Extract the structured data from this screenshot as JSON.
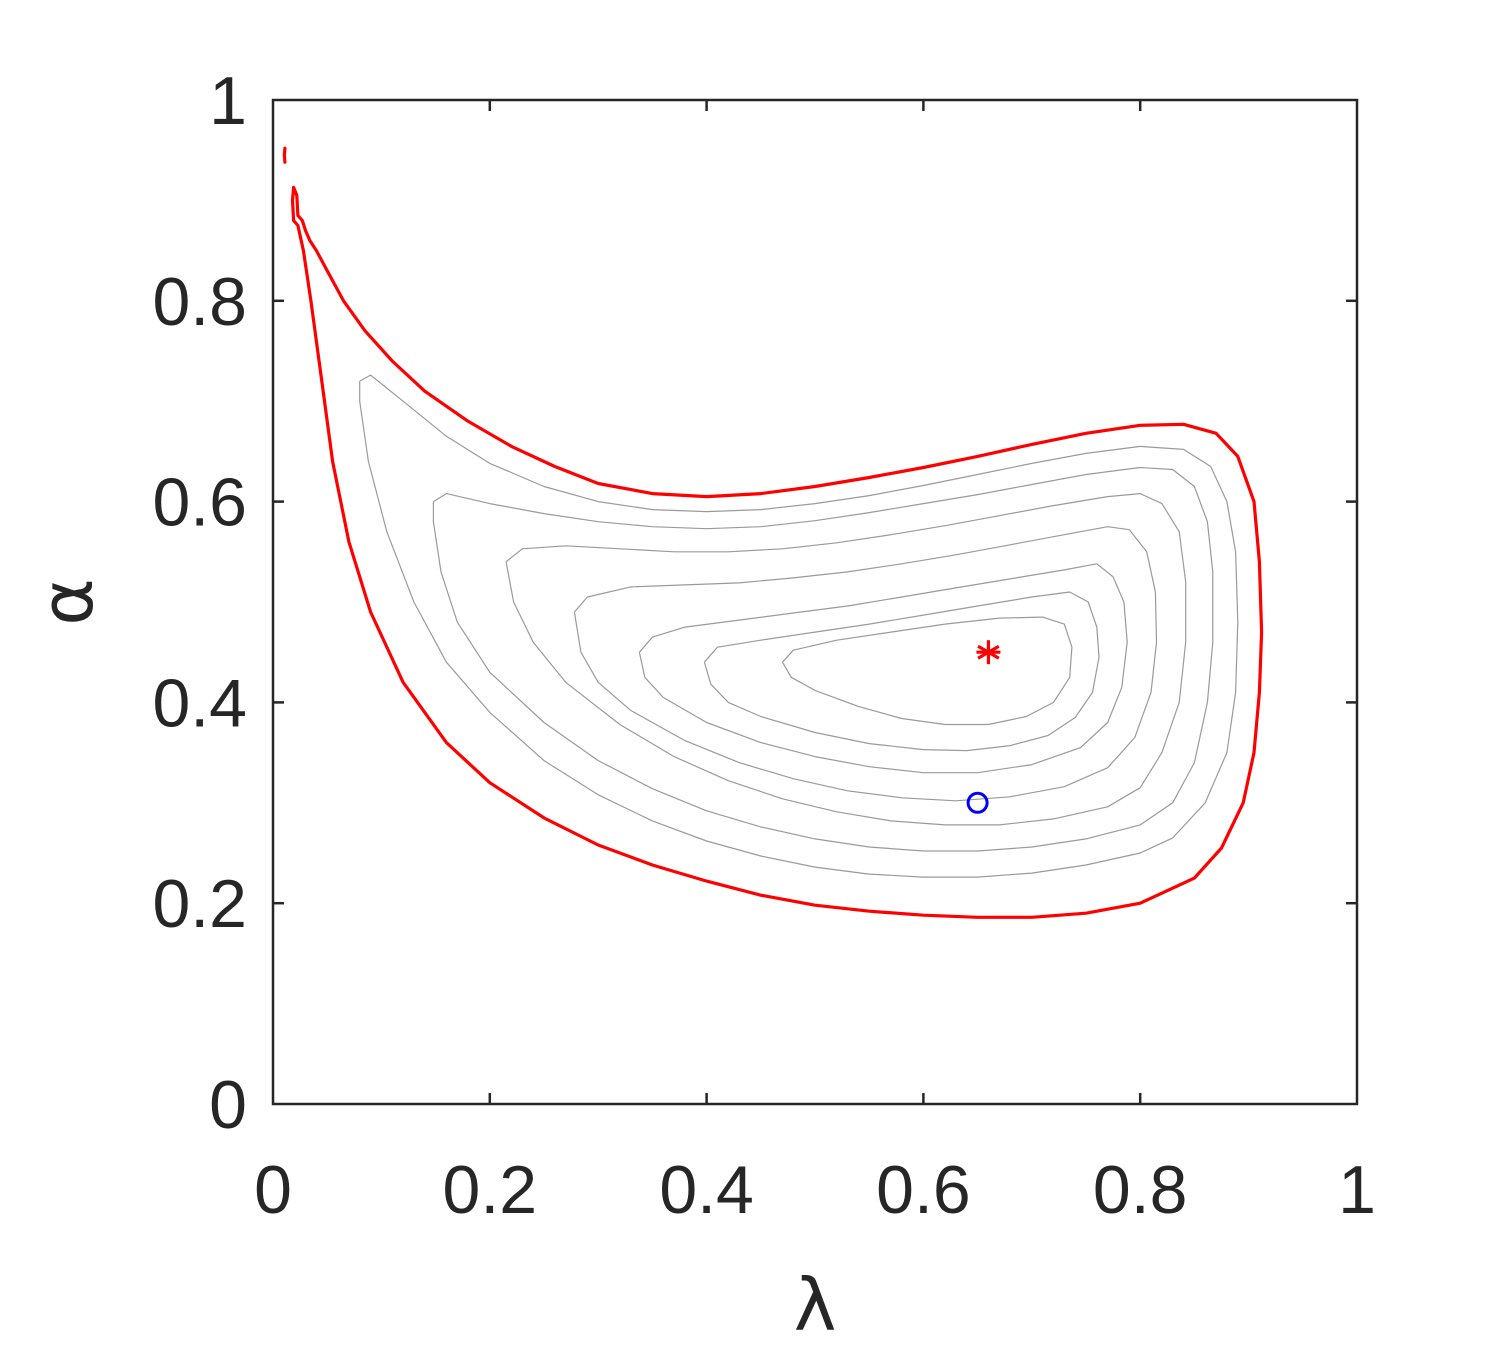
{
  "chart_data": {
    "type": "line",
    "title": "",
    "xlabel": "λ",
    "ylabel": "α",
    "xlim": [
      0,
      1
    ],
    "ylim": [
      0,
      1
    ],
    "xticks": [
      "0",
      "0.2",
      "0.4",
      "0.6",
      "0.8",
      "1"
    ],
    "yticks": [
      "0",
      "0.2",
      "0.4",
      "0.6",
      "0.8",
      "1"
    ],
    "grid": false,
    "legend": "none",
    "colors": {
      "boundary": "#ff0000",
      "contour": "#9a9a9a",
      "equilibrium": "#ff0000",
      "initial_point": "#0000ff",
      "axes": "#262626"
    },
    "series": [
      {
        "role": "separatrix",
        "points": [
          [
            0.019,
            0.88
          ],
          [
            0.018,
            0.9
          ],
          [
            0.019,
            0.913
          ],
          [
            0.022,
            0.905
          ],
          [
            0.023,
            0.885
          ],
          [
            0.027,
            0.88
          ],
          [
            0.03,
            0.87
          ],
          [
            0.034,
            0.86
          ],
          [
            0.04,
            0.85
          ],
          [
            0.05,
            0.83
          ],
          [
            0.065,
            0.8
          ],
          [
            0.085,
            0.77
          ],
          [
            0.11,
            0.74
          ],
          [
            0.14,
            0.71
          ],
          [
            0.18,
            0.68
          ],
          [
            0.22,
            0.655
          ],
          [
            0.26,
            0.635
          ],
          [
            0.3,
            0.618
          ],
          [
            0.35,
            0.608
          ],
          [
            0.4,
            0.605
          ],
          [
            0.45,
            0.608
          ],
          [
            0.5,
            0.615
          ],
          [
            0.55,
            0.624
          ],
          [
            0.6,
            0.634
          ],
          [
            0.65,
            0.645
          ],
          [
            0.7,
            0.657
          ],
          [
            0.75,
            0.668
          ],
          [
            0.8,
            0.676
          ],
          [
            0.84,
            0.677
          ],
          [
            0.87,
            0.668
          ],
          [
            0.89,
            0.645
          ],
          [
            0.905,
            0.6
          ],
          [
            0.91,
            0.54
          ],
          [
            0.912,
            0.47
          ],
          [
            0.91,
            0.41
          ],
          [
            0.905,
            0.35
          ],
          [
            0.895,
            0.3
          ],
          [
            0.875,
            0.255
          ],
          [
            0.85,
            0.225
          ],
          [
            0.8,
            0.2
          ],
          [
            0.75,
            0.19
          ],
          [
            0.7,
            0.186
          ],
          [
            0.65,
            0.186
          ],
          [
            0.6,
            0.188
          ],
          [
            0.55,
            0.192
          ],
          [
            0.5,
            0.198
          ],
          [
            0.45,
            0.208
          ],
          [
            0.4,
            0.222
          ],
          [
            0.35,
            0.238
          ],
          [
            0.3,
            0.258
          ],
          [
            0.25,
            0.285
          ],
          [
            0.2,
            0.32
          ],
          [
            0.16,
            0.36
          ],
          [
            0.12,
            0.42
          ],
          [
            0.09,
            0.49
          ],
          [
            0.07,
            0.56
          ],
          [
            0.055,
            0.64
          ],
          [
            0.045,
            0.72
          ],
          [
            0.035,
            0.8
          ],
          [
            0.028,
            0.85
          ],
          [
            0.023,
            0.875
          ],
          [
            0.019,
            0.88
          ]
        ]
      },
      {
        "role": "separatrix-fragment",
        "points": [
          [
            0.011,
            0.952
          ],
          [
            0.0105,
            0.945
          ],
          [
            0.011,
            0.938
          ]
        ]
      },
      {
        "role": "contour",
        "points": [
          [
            0.08,
            0.72
          ],
          [
            0.09,
            0.726
          ],
          [
            0.12,
            0.7
          ],
          [
            0.16,
            0.665
          ],
          [
            0.2,
            0.638
          ],
          [
            0.25,
            0.615
          ],
          [
            0.3,
            0.6
          ],
          [
            0.35,
            0.592
          ],
          [
            0.4,
            0.59
          ],
          [
            0.45,
            0.592
          ],
          [
            0.5,
            0.598
          ],
          [
            0.55,
            0.606
          ],
          [
            0.6,
            0.616
          ],
          [
            0.65,
            0.627
          ],
          [
            0.7,
            0.638
          ],
          [
            0.75,
            0.648
          ],
          [
            0.8,
            0.655
          ],
          [
            0.84,
            0.652
          ],
          [
            0.865,
            0.635
          ],
          [
            0.88,
            0.6
          ],
          [
            0.888,
            0.55
          ],
          [
            0.89,
            0.48
          ],
          [
            0.888,
            0.41
          ],
          [
            0.88,
            0.35
          ],
          [
            0.86,
            0.3
          ],
          [
            0.83,
            0.265
          ],
          [
            0.8,
            0.25
          ],
          [
            0.75,
            0.238
          ],
          [
            0.7,
            0.23
          ],
          [
            0.65,
            0.226
          ],
          [
            0.6,
            0.226
          ],
          [
            0.55,
            0.229
          ],
          [
            0.5,
            0.236
          ],
          [
            0.45,
            0.247
          ],
          [
            0.4,
            0.262
          ],
          [
            0.35,
            0.282
          ],
          [
            0.3,
            0.308
          ],
          [
            0.25,
            0.342
          ],
          [
            0.2,
            0.39
          ],
          [
            0.16,
            0.44
          ],
          [
            0.13,
            0.5
          ],
          [
            0.105,
            0.57
          ],
          [
            0.088,
            0.64
          ],
          [
            0.08,
            0.7
          ],
          [
            0.08,
            0.72
          ]
        ]
      },
      {
        "role": "contour",
        "points": [
          [
            0.148,
            0.6
          ],
          [
            0.16,
            0.608
          ],
          [
            0.2,
            0.598
          ],
          [
            0.25,
            0.588
          ],
          [
            0.3,
            0.58
          ],
          [
            0.35,
            0.575
          ],
          [
            0.4,
            0.573
          ],
          [
            0.45,
            0.575
          ],
          [
            0.5,
            0.581
          ],
          [
            0.55,
            0.589
          ],
          [
            0.6,
            0.598
          ],
          [
            0.65,
            0.607
          ],
          [
            0.7,
            0.617
          ],
          [
            0.75,
            0.627
          ],
          [
            0.8,
            0.634
          ],
          [
            0.83,
            0.632
          ],
          [
            0.85,
            0.615
          ],
          [
            0.862,
            0.58
          ],
          [
            0.867,
            0.53
          ],
          [
            0.867,
            0.46
          ],
          [
            0.862,
            0.4
          ],
          [
            0.85,
            0.34
          ],
          [
            0.83,
            0.3
          ],
          [
            0.8,
            0.278
          ],
          [
            0.75,
            0.264
          ],
          [
            0.7,
            0.256
          ],
          [
            0.65,
            0.252
          ],
          [
            0.6,
            0.252
          ],
          [
            0.55,
            0.256
          ],
          [
            0.5,
            0.264
          ],
          [
            0.45,
            0.276
          ],
          [
            0.4,
            0.292
          ],
          [
            0.35,
            0.314
          ],
          [
            0.3,
            0.342
          ],
          [
            0.25,
            0.38
          ],
          [
            0.2,
            0.43
          ],
          [
            0.17,
            0.48
          ],
          [
            0.155,
            0.53
          ],
          [
            0.148,
            0.58
          ],
          [
            0.148,
            0.6
          ]
        ]
      },
      {
        "role": "contour",
        "points": [
          [
            0.215,
            0.54
          ],
          [
            0.23,
            0.553
          ],
          [
            0.27,
            0.556
          ],
          [
            0.32,
            0.553
          ],
          [
            0.37,
            0.55
          ],
          [
            0.42,
            0.55
          ],
          [
            0.47,
            0.553
          ],
          [
            0.52,
            0.559
          ],
          [
            0.57,
            0.567
          ],
          [
            0.62,
            0.576
          ],
          [
            0.67,
            0.586
          ],
          [
            0.72,
            0.596
          ],
          [
            0.77,
            0.605
          ],
          [
            0.8,
            0.608
          ],
          [
            0.82,
            0.598
          ],
          [
            0.836,
            0.57
          ],
          [
            0.842,
            0.52
          ],
          [
            0.842,
            0.46
          ],
          [
            0.836,
            0.4
          ],
          [
            0.82,
            0.35
          ],
          [
            0.8,
            0.315
          ],
          [
            0.77,
            0.296
          ],
          [
            0.72,
            0.284
          ],
          [
            0.67,
            0.278
          ],
          [
            0.62,
            0.278
          ],
          [
            0.57,
            0.282
          ],
          [
            0.52,
            0.291
          ],
          [
            0.47,
            0.304
          ],
          [
            0.42,
            0.322
          ],
          [
            0.37,
            0.346
          ],
          [
            0.32,
            0.378
          ],
          [
            0.27,
            0.42
          ],
          [
            0.24,
            0.46
          ],
          [
            0.222,
            0.5
          ],
          [
            0.215,
            0.54
          ]
        ]
      },
      {
        "role": "contour",
        "points": [
          [
            0.278,
            0.49
          ],
          [
            0.29,
            0.505
          ],
          [
            0.33,
            0.515
          ],
          [
            0.38,
            0.517
          ],
          [
            0.43,
            0.519
          ],
          [
            0.48,
            0.524
          ],
          [
            0.53,
            0.53
          ],
          [
            0.58,
            0.538
          ],
          [
            0.63,
            0.547
          ],
          [
            0.68,
            0.557
          ],
          [
            0.73,
            0.567
          ],
          [
            0.77,
            0.575
          ],
          [
            0.79,
            0.572
          ],
          [
            0.806,
            0.55
          ],
          [
            0.814,
            0.51
          ],
          [
            0.815,
            0.46
          ],
          [
            0.81,
            0.41
          ],
          [
            0.795,
            0.365
          ],
          [
            0.77,
            0.335
          ],
          [
            0.73,
            0.316
          ],
          [
            0.68,
            0.306
          ],
          [
            0.63,
            0.302
          ],
          [
            0.58,
            0.305
          ],
          [
            0.53,
            0.312
          ],
          [
            0.48,
            0.324
          ],
          [
            0.43,
            0.34
          ],
          [
            0.38,
            0.362
          ],
          [
            0.33,
            0.392
          ],
          [
            0.3,
            0.42
          ],
          [
            0.284,
            0.45
          ],
          [
            0.278,
            0.49
          ]
        ]
      },
      {
        "role": "contour",
        "points": [
          [
            0.338,
            0.45
          ],
          [
            0.35,
            0.465
          ],
          [
            0.38,
            0.475
          ],
          [
            0.43,
            0.482
          ],
          [
            0.48,
            0.489
          ],
          [
            0.53,
            0.496
          ],
          [
            0.58,
            0.505
          ],
          [
            0.63,
            0.514
          ],
          [
            0.68,
            0.523
          ],
          [
            0.73,
            0.532
          ],
          [
            0.76,
            0.538
          ],
          [
            0.775,
            0.525
          ],
          [
            0.785,
            0.5
          ],
          [
            0.788,
            0.46
          ],
          [
            0.783,
            0.415
          ],
          [
            0.77,
            0.38
          ],
          [
            0.745,
            0.355
          ],
          [
            0.7,
            0.338
          ],
          [
            0.65,
            0.33
          ],
          [
            0.6,
            0.33
          ],
          [
            0.55,
            0.336
          ],
          [
            0.5,
            0.346
          ],
          [
            0.45,
            0.36
          ],
          [
            0.4,
            0.38
          ],
          [
            0.36,
            0.405
          ],
          [
            0.343,
            0.425
          ],
          [
            0.338,
            0.45
          ]
        ]
      },
      {
        "role": "contour",
        "points": [
          [
            0.398,
            0.44
          ],
          [
            0.41,
            0.455
          ],
          [
            0.45,
            0.462
          ],
          [
            0.5,
            0.47
          ],
          [
            0.55,
            0.478
          ],
          [
            0.6,
            0.487
          ],
          [
            0.65,
            0.496
          ],
          [
            0.7,
            0.505
          ],
          [
            0.735,
            0.51
          ],
          [
            0.752,
            0.5
          ],
          [
            0.76,
            0.475
          ],
          [
            0.762,
            0.445
          ],
          [
            0.756,
            0.41
          ],
          [
            0.74,
            0.385
          ],
          [
            0.715,
            0.367
          ],
          [
            0.68,
            0.357
          ],
          [
            0.64,
            0.352
          ],
          [
            0.6,
            0.353
          ],
          [
            0.55,
            0.359
          ],
          [
            0.5,
            0.37
          ],
          [
            0.45,
            0.386
          ],
          [
            0.42,
            0.4
          ],
          [
            0.404,
            0.418
          ],
          [
            0.398,
            0.44
          ]
        ]
      },
      {
        "role": "contour",
        "points": [
          [
            0.47,
            0.44
          ],
          [
            0.48,
            0.452
          ],
          [
            0.52,
            0.462
          ],
          [
            0.57,
            0.47
          ],
          [
            0.62,
            0.478
          ],
          [
            0.67,
            0.484
          ],
          [
            0.71,
            0.485
          ],
          [
            0.73,
            0.478
          ],
          [
            0.737,
            0.455
          ],
          [
            0.735,
            0.425
          ],
          [
            0.72,
            0.4
          ],
          [
            0.695,
            0.386
          ],
          [
            0.66,
            0.378
          ],
          [
            0.62,
            0.378
          ],
          [
            0.58,
            0.384
          ],
          [
            0.54,
            0.396
          ],
          [
            0.5,
            0.412
          ],
          [
            0.478,
            0.425
          ],
          [
            0.47,
            0.44
          ]
        ]
      }
    ],
    "markers": [
      {
        "role": "equilibrium",
        "symbol": "asterisk",
        "x": 0.66,
        "y": 0.45
      },
      {
        "role": "initial-point",
        "symbol": "circle",
        "x": 0.65,
        "y": 0.3
      }
    ]
  }
}
